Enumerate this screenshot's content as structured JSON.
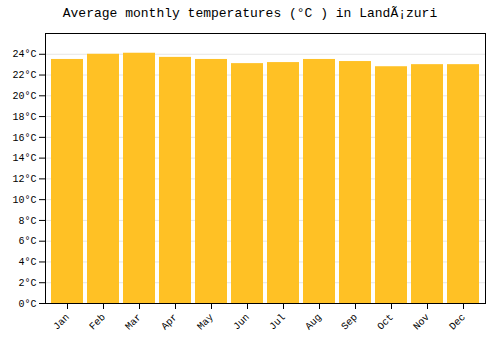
{
  "chart_data": {
    "type": "bar",
    "title": "Average monthly temperatures (°C ) in LandÃ¡zuri",
    "categories": [
      "Jan",
      "Feb",
      "Mar",
      "Apr",
      "May",
      "Jun",
      "Jul",
      "Aug",
      "Sep",
      "Oct",
      "Nov",
      "Dec"
    ],
    "values": [
      23.5,
      24.0,
      24.1,
      23.7,
      23.5,
      23.1,
      23.2,
      23.5,
      23.3,
      22.8,
      23.0,
      23.0
    ],
    "color": "#FFC125",
    "ylim": [
      0,
      26
    ],
    "yticks": [
      {
        "value": 0,
        "label": "0°C"
      },
      {
        "value": 2,
        "label": "2°C"
      },
      {
        "value": 4,
        "label": "4°C"
      },
      {
        "value": 6,
        "label": "6°C"
      },
      {
        "value": 8,
        "label": "8°C"
      },
      {
        "value": 10,
        "label": "10°C"
      },
      {
        "value": 12,
        "label": "12°C"
      },
      {
        "value": 14,
        "label": "14°C"
      },
      {
        "value": 16,
        "label": "16°C"
      },
      {
        "value": 18,
        "label": "18°C"
      },
      {
        "value": 20,
        "label": "20°C"
      },
      {
        "value": 22,
        "label": "22°C"
      },
      {
        "value": 24,
        "label": "24°C"
      }
    ],
    "grid": true
  }
}
